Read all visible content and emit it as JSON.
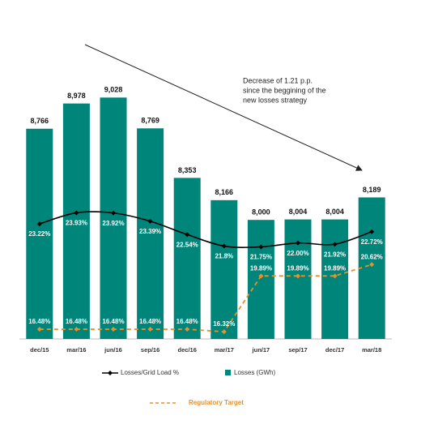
{
  "chart_data": {
    "type": "bar",
    "categories": [
      "dec/15",
      "mar/16",
      "jun/16",
      "sep/16",
      "dec/16",
      "mar/17",
      "jun/17",
      "sep/17",
      "dec/17",
      "mar/18"
    ],
    "ylim": [
      7000,
      9500
    ],
    "y2lim": [
      15.86,
      34.9
    ],
    "series": [
      {
        "name": "Losses (GWh)",
        "type": "bar",
        "color": "#00857a",
        "values": [
          8766,
          8978,
          9028,
          8769,
          8353,
          8166,
          8000,
          8004,
          8004,
          8189
        ],
        "value_labels": [
          "8,766",
          "8,978",
          "9,028",
          "8,769",
          "8,353",
          "8,166",
          "8,000",
          "8,004",
          "8,004",
          "8,189"
        ]
      },
      {
        "name": "Losses/Grid Load %",
        "type": "line",
        "axis": "y2",
        "color": "#000000",
        "smooth": true,
        "values": [
          23.22,
          23.93,
          23.92,
          23.39,
          22.54,
          21.8,
          21.75,
          22.0,
          21.92,
          22.72
        ],
        "value_labels": [
          "23.22%",
          "23.93%",
          "23.92%",
          "23.39%",
          "22.54%",
          "21.8%",
          "21.75%",
          "22.00%",
          "21.92%",
          "22.72%"
        ]
      },
      {
        "name": "Regulatory Target",
        "type": "line",
        "axis": "y2",
        "color": "#e8902a",
        "dashed": true,
        "values": [
          16.48,
          16.48,
          16.48,
          16.48,
          16.48,
          16.32,
          19.89,
          19.89,
          19.89,
          20.62
        ],
        "value_labels": [
          "16.48%",
          "16.48%",
          "16.48%",
          "16.48%",
          "16.48%",
          "16.32%",
          "19.89%",
          "19.89%",
          "19.89%",
          "20.62%"
        ]
      }
    ],
    "annotation": [
      "Decrease of 1.21 p.p.",
      "since the beggining of the",
      "new losses strategy"
    ]
  }
}
